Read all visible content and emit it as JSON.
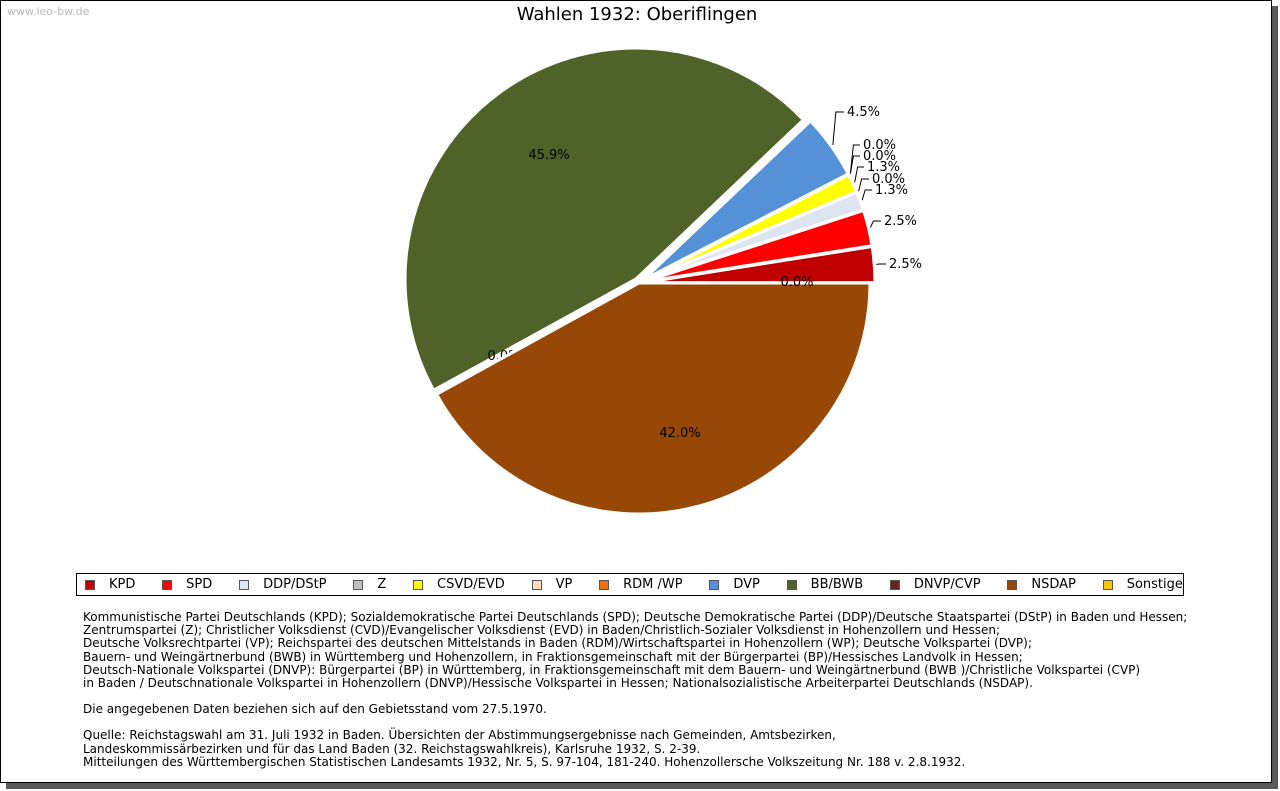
{
  "watermark": "www.leo-bw.de",
  "chart_data": {
    "type": "pie",
    "title": "Wahlen 1932: Oberiflingen",
    "slices": [
      {
        "name": "KPD",
        "value": 2.5,
        "label": "2.5%",
        "color": "#c00000",
        "exploded": true
      },
      {
        "name": "SPD",
        "value": 2.5,
        "label": "2.5%",
        "color": "#ff0000",
        "exploded": true
      },
      {
        "name": "DDP/DStP",
        "value": 1.3,
        "label": "1.3%",
        "color": "#dde5f0",
        "exploded": true
      },
      {
        "name": "Z",
        "value": 0.0,
        "label": "0.0%",
        "color": "#c0c0c0",
        "exploded": true
      },
      {
        "name": "CSVD/EVD",
        "value": 1.3,
        "label": "1.3%",
        "color": "#ffff00",
        "exploded": true
      },
      {
        "name": "VP",
        "value": 0.0,
        "label": "0.0%",
        "color": "#ffdcc0",
        "exploded": true
      },
      {
        "name": "RDM /WP",
        "value": 0.0,
        "label": "0.0%",
        "color": "#f07010",
        "exploded": true
      },
      {
        "name": "DVP",
        "value": 4.5,
        "label": "4.5%",
        "color": "#5591d6",
        "exploded": true
      },
      {
        "name": "BB/BWB",
        "value": 45.9,
        "label": "45.9%",
        "color": "#4f6228",
        "exploded": true
      },
      {
        "name": "DNVP/CVP",
        "value": 0.0,
        "label": "0.0%",
        "color": "#632523",
        "exploded": false
      },
      {
        "name": "NSDAP",
        "value": 42.0,
        "label": "42.0%",
        "color": "#974806",
        "exploded": false
      },
      {
        "name": "Sonstige",
        "value": 0.0,
        "label": "0.0%",
        "color": "#ffc000",
        "exploded": false
      }
    ]
  },
  "notes": {
    "parties": [
      "Kommunistische Partei Deutschlands (KPD); Sozialdemokratische Partei Deutschlands (SPD); Deutsche Demokratische Partei (DDP)/Deutsche Staatspartei (DStP) in Baden und Hessen;",
      "Zentrumspartei (Z); Christlicher Volksdienst (CVD)/Evangelischer Volksdienst (EVD) in Baden/Christlich-Sozialer Volksdienst in Hohenzollern und Hessen;",
      "Deutsche Volksrechtpartei (VP); Reichspartei des deutschen Mittelstands in Baden (RDM)/Wirtschaftspartei in Hohenzollern (WP); Deutsche Volkspartei (DVP);",
      "Bauern- und Weingärtnerbund (BWB) in Württemberg und Hohenzollern, in Fraktionsgemeinschaft mit der Bürgerpartei (BP)/Hessisches Landvolk in Hessen;",
      "Deutsch-Nationale Volkspartei (DNVP): Bürgerpartei (BP) in Württemberg, in Fraktionsgemeinschaft mit dem Bauern- und Weingärtnerbund (BWB )/Christliche Volkspartei (CVP)",
      "in Baden / Deutschnationale Volkspartei in Hohenzollern (DNVP)/Hessische Volkspartei in Hessen; Nationalsozialistische Arbeiterpartei Deutschlands (NSDAP)."
    ],
    "gebietsstand": "Die angegebenen Daten beziehen sich auf den Gebietsstand vom 27.5.1970.",
    "quelle": [
      "Quelle: Reichstagswahl am 31. Juli 1932 in Baden. Übersichten der Abstimmungsergebnisse nach Gemeinden, Amtsbezirken,",
      "Landeskommissärbezirken und für das Land Baden (32. Reichstagswahlkreis), Karlsruhe 1932, S. 2-39.",
      "Mitteilungen des Württembergischen Statistischen Landesamts 1932, Nr. 5, S. 97-104, 181-240. Hohenzollersche Volkszeitung Nr. 188 v. 2.8.1932."
    ]
  }
}
